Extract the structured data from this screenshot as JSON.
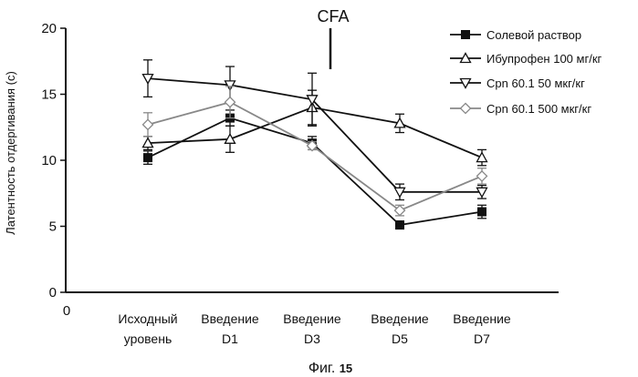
{
  "chart_data": {
    "type": "line",
    "title": "",
    "ylabel": "Латентность отдергивания (с)",
    "xlabel": "",
    "ylim": [
      0,
      20
    ],
    "yticks": [
      0,
      5,
      10,
      15,
      20
    ],
    "x_origin_label": "0",
    "categories": [
      {
        "line1": "Исходный",
        "line2": "уровень"
      },
      {
        "line1": "Введение",
        "line2": "D1"
      },
      {
        "line1": "Введение",
        "line2": "D3"
      },
      {
        "line1": "Введение",
        "line2": "D5"
      },
      {
        "line1": "Введение",
        "line2": "D7"
      }
    ],
    "annotation": {
      "text": "CFA",
      "after_category_index": 2
    },
    "caption": {
      "prefix": "Фиг. ",
      "number": "15"
    },
    "legend_position": "top-right",
    "series": [
      {
        "name": "Солевой раствор",
        "marker": "filled-square",
        "color": "#111111",
        "values": [
          10.2,
          13.2,
          11.3,
          5.1,
          6.1
        ],
        "errors": [
          0.5,
          0.6,
          0.5,
          0.3,
          0.5
        ]
      },
      {
        "name": "Ибупрофен 100 мг/кг",
        "marker": "triangle-up",
        "color": "#111111",
        "values": [
          11.3,
          11.6,
          14.0,
          12.8,
          10.2
        ],
        "errors": [
          0.5,
          1.0,
          1.3,
          0.7,
          0.6
        ]
      },
      {
        "name": "Cpn 60.1 50 мкг/кг",
        "marker": "triangle-down",
        "color": "#111111",
        "values": [
          16.2,
          15.7,
          14.6,
          7.6,
          7.6
        ],
        "errors": [
          1.4,
          1.4,
          2.0,
          0.6,
          0.5
        ]
      },
      {
        "name": "Cpn 60.1 500 мкг/кг",
        "marker": "diamond",
        "color": "#888888",
        "values": [
          12.7,
          14.4,
          11.1,
          6.2,
          8.8
        ],
        "errors": [
          0.9,
          1.2,
          0.3,
          0.4,
          0.6
        ]
      }
    ]
  }
}
